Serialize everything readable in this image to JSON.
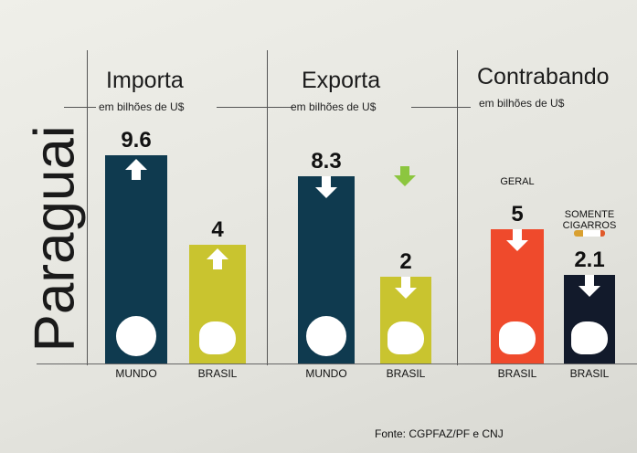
{
  "side_title": "Paraguai",
  "panels": [
    {
      "title": "Importa",
      "subtitle": "em bilhões de U$"
    },
    {
      "title": "Exporta",
      "subtitle": "em bilhões de U$"
    },
    {
      "title": "Contrabando",
      "subtitle": "em bilhões de U$"
    }
  ],
  "source": "Fonte: CGPFAZ/PF e CNJ",
  "chart_data": {
    "type": "bar",
    "unit": "bilhões de U$",
    "bars": [
      {
        "panel": "Importa",
        "category": "MUNDO",
        "value": 9.6,
        "label": "9.6",
        "direction": "up",
        "color": "#0f3a4f",
        "icon": "globe-icon"
      },
      {
        "panel": "Importa",
        "category": "BRASIL",
        "value": 4,
        "label": "4",
        "direction": "up",
        "color": "#c9c42f",
        "icon": "brazil-map-icon"
      },
      {
        "panel": "Exporta",
        "category": "MUNDO",
        "value": 8.3,
        "label": "8.3",
        "direction": "down",
        "color": "#0f3a4f",
        "icon": "globe-icon"
      },
      {
        "panel": "Exporta",
        "category": "BRASIL",
        "value": 2,
        "label": "2",
        "direction": "down",
        "color": "#c9c42f",
        "icon": "brazil-map-icon"
      },
      {
        "panel": "Contrabando",
        "category": "BRASIL",
        "note": "GERAL",
        "value": 5,
        "label": "5",
        "direction": "down",
        "color": "#ef4a2c",
        "icon": "brazil-skull-icon"
      },
      {
        "panel": "Contrabando",
        "category": "BRASIL",
        "note": "SOMENTE CIGARROS",
        "value": 2.1,
        "label": "2.1",
        "direction": "down",
        "color": "#121a2b",
        "icon": "brazil-skull-icon"
      }
    ]
  }
}
